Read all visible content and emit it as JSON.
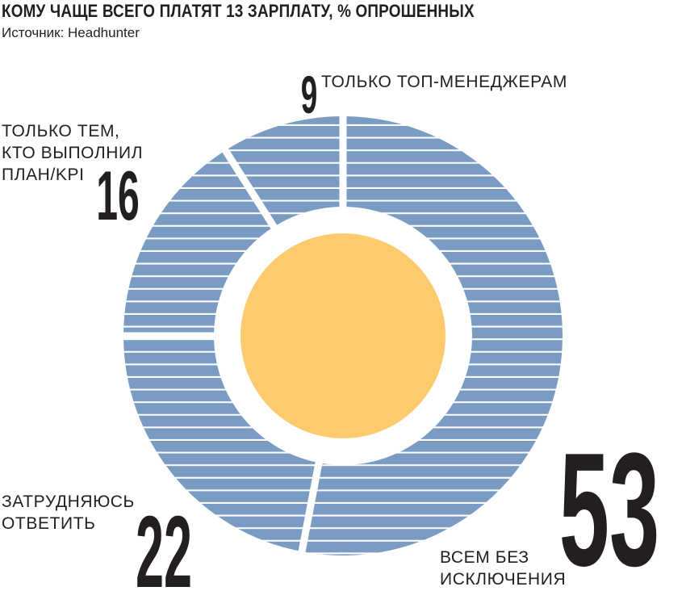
{
  "title": "КОМУ ЧАЩЕ ВСЕГО ПЛАТЯТ 13 ЗАРПЛАТУ, % ОПРОШЕННЫХ",
  "source": "Источник: Headhunter",
  "colors": {
    "slice": "#7a9cc3",
    "stripe": "#ffffff",
    "center": "#fdcb6e",
    "text": "#231f20"
  },
  "chart_data": {
    "type": "pie",
    "title": "КОМУ ЧАЩЕ ВСЕГО ПЛАТЯТ 13 ЗАРПЛАТУ, % ОПРОШЕННЫХ",
    "unit": "%",
    "slices": [
      {
        "value": 53,
        "label_lines": [
          "ВСЕМ БЕЗ",
          "ИСКЛЮЧЕНИЯ"
        ]
      },
      {
        "value": 22,
        "label_lines": [
          "ЗАТРУДНЯЮСЬ",
          "ОТВЕТИТЬ"
        ]
      },
      {
        "value": 16,
        "label_lines": [
          "ТОЛЬКО ТЕМ,",
          "КТО ВЫПОЛНИЛ",
          "ПЛАН/KPI"
        ]
      },
      {
        "value": 9,
        "label_lines": [
          "ТОЛЬКО ТОП-МЕНЕДЖЕРАМ"
        ]
      }
    ]
  }
}
